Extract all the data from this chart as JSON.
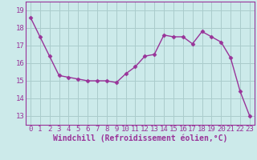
{
  "x": [
    0,
    1,
    2,
    3,
    4,
    5,
    6,
    7,
    8,
    9,
    10,
    11,
    12,
    13,
    14,
    15,
    16,
    17,
    18,
    19,
    20,
    21,
    22,
    23
  ],
  "y": [
    18.6,
    17.5,
    16.4,
    15.3,
    15.2,
    15.1,
    15.0,
    15.0,
    15.0,
    14.9,
    15.4,
    15.8,
    16.4,
    16.5,
    17.6,
    17.5,
    17.5,
    17.1,
    17.8,
    17.5,
    17.2,
    16.3,
    14.4,
    13.0
  ],
  "line_color": "#993399",
  "marker": "D",
  "marker_size": 2.5,
  "bg_color": "#cceaea",
  "grid_color": "#aacccc",
  "xlabel": "Windchill (Refroidissement éolien,°C)",
  "ylim": [
    12.5,
    19.5
  ],
  "xlim": [
    -0.5,
    23.5
  ],
  "yticks": [
    13,
    14,
    15,
    16,
    17,
    18,
    19
  ],
  "xticks": [
    0,
    1,
    2,
    3,
    4,
    5,
    6,
    7,
    8,
    9,
    10,
    11,
    12,
    13,
    14,
    15,
    16,
    17,
    18,
    19,
    20,
    21,
    22,
    23
  ],
  "xlabel_fontsize": 7.0,
  "tick_fontsize": 6.5,
  "line_width": 1.0
}
